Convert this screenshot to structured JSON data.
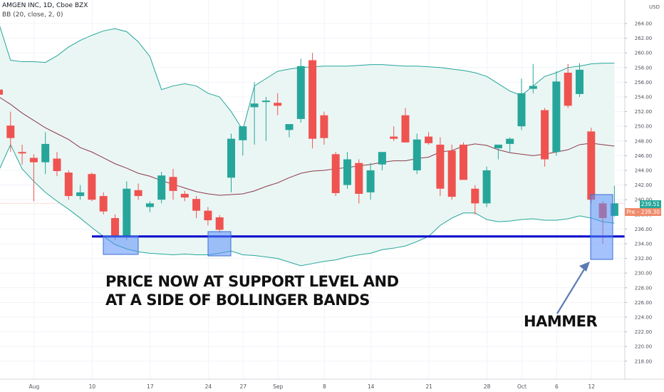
{
  "header": {
    "symbol_line": "AMGEN INC, 1D, Cboe BZX",
    "indicator_line": "BB (20, close, 2, 0)",
    "currency": "USD"
  },
  "price_labels": {
    "last_close": "239.51",
    "pre_market": "Pre – 239.30"
  },
  "annotations": {
    "main_text_line1": "PRICE NOW AT SUPPORT LEVEL AND",
    "main_text_line2": "AT A SIDE OF BOLLINGER BANDS",
    "hammer_label": "HAMMER"
  },
  "colors": {
    "up": "#26a69a",
    "down": "#ef5350",
    "support_line": "#0000cc",
    "highlight": "#5b8ff9",
    "band_line": "#26a69a",
    "band_fill": "#eaf6f4",
    "basis_line": "#8b3a4a"
  },
  "chart_data": {
    "type": "candlestick",
    "title": "AMGEN INC, 1D, Cboe BZX",
    "y_axis": {
      "min": 216,
      "max": 264,
      "ticks": [
        218,
        220,
        222,
        224,
        226,
        228,
        230,
        232,
        234,
        236,
        238,
        240,
        242,
        244,
        246,
        248,
        250,
        252,
        254,
        256,
        258,
        260,
        262,
        264
      ],
      "tick_labels": [
        "218.00",
        "220.00",
        "222.00",
        "224.00",
        "226.00",
        "228.00",
        "230.00",
        "232.00",
        "234.00",
        "236.00",
        "238.00",
        "240.00",
        "242.00",
        "244.00",
        "246.00",
        "248.00",
        "250.00",
        "252.00",
        "254.00",
        "256.00",
        "258.00",
        "260.00",
        "262.00",
        "264.00"
      ]
    },
    "x_axis": {
      "tick_labels": [
        "Aug",
        "10",
        "17",
        "24",
        "27",
        "Sep",
        "8",
        "14",
        "21",
        "28",
        "Oct",
        "6",
        "12"
      ],
      "tick_index": [
        3,
        8,
        13,
        18,
        21,
        24,
        28,
        32,
        37,
        42,
        45,
        48,
        51
      ]
    },
    "support_level": 235,
    "candles": [
      {
        "o": 255.0,
        "h": 256.5,
        "l": 254.0,
        "c": 254.3
      },
      {
        "o": 250.1,
        "h": 252.0,
        "l": 246.5,
        "c": 248.4
      },
      {
        "o": 246.5,
        "h": 247.5,
        "l": 244.8,
        "c": 246.3
      },
      {
        "o": 245.7,
        "h": 246.2,
        "l": 239.8,
        "c": 245.1
      },
      {
        "o": 245.1,
        "h": 249.2,
        "l": 243.5,
        "c": 247.6
      },
      {
        "o": 245.6,
        "h": 246.5,
        "l": 243.2,
        "c": 243.9
      },
      {
        "o": 243.7,
        "h": 244.0,
        "l": 240.0,
        "c": 240.5
      },
      {
        "o": 240.5,
        "h": 242.0,
        "l": 240.0,
        "c": 241.0
      },
      {
        "o": 243.5,
        "h": 243.7,
        "l": 239.8,
        "c": 240.0
      },
      {
        "o": 240.5,
        "h": 241.0,
        "l": 238.0,
        "c": 238.4
      },
      {
        "o": 237.5,
        "h": 238.0,
        "l": 234.5,
        "c": 235.0
      },
      {
        "o": 235.0,
        "h": 242.5,
        "l": 234.5,
        "c": 241.5
      },
      {
        "o": 241.3,
        "h": 242.2,
        "l": 240.0,
        "c": 240.5
      },
      {
        "o": 239.0,
        "h": 239.8,
        "l": 238.3,
        "c": 239.5
      },
      {
        "o": 240.0,
        "h": 243.8,
        "l": 239.5,
        "c": 243.3
      },
      {
        "o": 243.1,
        "h": 244.2,
        "l": 240.0,
        "c": 241.2
      },
      {
        "o": 240.8,
        "h": 241.2,
        "l": 239.8,
        "c": 240.3
      },
      {
        "o": 240.1,
        "h": 240.5,
        "l": 237.5,
        "c": 238.5
      },
      {
        "o": 238.5,
        "h": 239.0,
        "l": 236.5,
        "c": 237.2
      },
      {
        "o": 237.6,
        "h": 237.9,
        "l": 235.5,
        "c": 235.9
      },
      {
        "o": 243.0,
        "h": 249.0,
        "l": 241.0,
        "c": 248.3
      },
      {
        "o": 248.1,
        "h": 250.0,
        "l": 246.0,
        "c": 250.0
      },
      {
        "o": 252.6,
        "h": 256.0,
        "l": 247.5,
        "c": 253.1
      },
      {
        "o": 253.3,
        "h": 254.0,
        "l": 248.0,
        "c": 253.5
      },
      {
        "o": 253.2,
        "h": 254.5,
        "l": 251.5,
        "c": 252.8
      },
      {
        "o": 249.5,
        "h": 250.2,
        "l": 248.5,
        "c": 250.3
      },
      {
        "o": 251.0,
        "h": 259.2,
        "l": 250.5,
        "c": 258.2
      },
      {
        "o": 259.0,
        "h": 260.0,
        "l": 247.0,
        "c": 248.3
      },
      {
        "o": 251.5,
        "h": 252.0,
        "l": 247.5,
        "c": 248.4
      },
      {
        "o": 246.2,
        "h": 246.5,
        "l": 240.5,
        "c": 240.9
      },
      {
        "o": 242.0,
        "h": 246.5,
        "l": 241.5,
        "c": 245.5
      },
      {
        "o": 245.0,
        "h": 245.5,
        "l": 239.5,
        "c": 240.8
      },
      {
        "o": 241.0,
        "h": 245.0,
        "l": 240.0,
        "c": 244.0
      },
      {
        "o": 244.8,
        "h": 246.2,
        "l": 244.0,
        "c": 246.5
      },
      {
        "o": 248.6,
        "h": 250.0,
        "l": 248.0,
        "c": 248.3
      },
      {
        "o": 251.5,
        "h": 252.5,
        "l": 248.0,
        "c": 247.8
      },
      {
        "o": 244.0,
        "h": 249.0,
        "l": 243.5,
        "c": 248.2
      },
      {
        "o": 248.6,
        "h": 249.2,
        "l": 247.5,
        "c": 247.7
      },
      {
        "o": 247.5,
        "h": 248.5,
        "l": 240.5,
        "c": 241.5
      },
      {
        "o": 246.7,
        "h": 247.5,
        "l": 240.0,
        "c": 240.4
      },
      {
        "o": 247.5,
        "h": 247.8,
        "l": 243.0,
        "c": 242.7
      },
      {
        "o": 241.5,
        "h": 242.0,
        "l": 238.0,
        "c": 239.5
      },
      {
        "o": 239.5,
        "h": 244.5,
        "l": 239.0,
        "c": 244.0
      },
      {
        "o": 247.0,
        "h": 247.5,
        "l": 245.5,
        "c": 247.5
      },
      {
        "o": 247.6,
        "h": 248.5,
        "l": 246.5,
        "c": 248.3
      },
      {
        "o": 250.0,
        "h": 256.5,
        "l": 249.5,
        "c": 254.5
      },
      {
        "o": 255.1,
        "h": 258.5,
        "l": 254.5,
        "c": 255.5
      },
      {
        "o": 252.2,
        "h": 252.5,
        "l": 244.5,
        "c": 245.5
      },
      {
        "o": 246.5,
        "h": 257.5,
        "l": 246.0,
        "c": 256.1
      },
      {
        "o": 257.3,
        "h": 258.5,
        "l": 252.5,
        "c": 252.8
      },
      {
        "o": 254.4,
        "h": 258.6,
        "l": 254.0,
        "c": 257.7
      },
      {
        "o": 249.3,
        "h": 249.8,
        "l": 239.5,
        "c": 240.0
      },
      {
        "o": 239.5,
        "h": 239.8,
        "l": 234.0,
        "c": 237.5
      },
      {
        "o": 237.8,
        "h": 241.9,
        "l": 237.7,
        "c": 239.5
      }
    ],
    "bollinger": {
      "upper": [
        264,
        259,
        258.8,
        258.8,
        258.7,
        259.6,
        260.8,
        261.7,
        262.4,
        263.0,
        263.3,
        262.9,
        261.5,
        259.5,
        255,
        255.5,
        255.8,
        255.5,
        254.5,
        254,
        252,
        249.5,
        255.5,
        256.5,
        257.5,
        257.8,
        258,
        258.1,
        258.2,
        258.2,
        258.2,
        258.3,
        258.4,
        258.4,
        258.3,
        258.2,
        258.2,
        258.1,
        258,
        257.8,
        257.6,
        257.3,
        256.8,
        255.8,
        254.8,
        254.2,
        255.5,
        256.8,
        257.3,
        258,
        258.2,
        258.5,
        258.6,
        258.6
      ],
      "lower": [
        244,
        247.5,
        244.2,
        242.5,
        241,
        239.8,
        238.7,
        237.5,
        236.2,
        235,
        233.9,
        233.3,
        232.9,
        232.7,
        232.6,
        232.5,
        232.6,
        232.5,
        232.5,
        232.7,
        233,
        232.5,
        232.4,
        232.2,
        232,
        231.5,
        231,
        231.3,
        231.6,
        231.8,
        232.2,
        232.5,
        232.7,
        233.2,
        233.4,
        233.7,
        234.3,
        235,
        236.5,
        237.5,
        238.2,
        238.2,
        237.3,
        237,
        237.1,
        237.3,
        237.4,
        237.2,
        237.2,
        237.4,
        237.8,
        237.5,
        237,
        236.8
      ],
      "basis": [
        254,
        253,
        251.8,
        250.8,
        249.8,
        249,
        248.2,
        247.1,
        246.5,
        245.7,
        244.9,
        244.3,
        243.6,
        243.2,
        242.6,
        242.1,
        241.6,
        241.1,
        240.8,
        240.6,
        240.7,
        240.8,
        241.2,
        241.8,
        242.3,
        243,
        243.6,
        243.9,
        244,
        244.2,
        244.4,
        244.6,
        244.8,
        245.1,
        245.3,
        245.3,
        245.6,
        245.8,
        246.5,
        246.7,
        247.3,
        247.6,
        247.4,
        246.8,
        246.4,
        246.2,
        246.0,
        246.2,
        246.5,
        246.8,
        247.5,
        247.7,
        247.5,
        247.3
      ]
    }
  }
}
